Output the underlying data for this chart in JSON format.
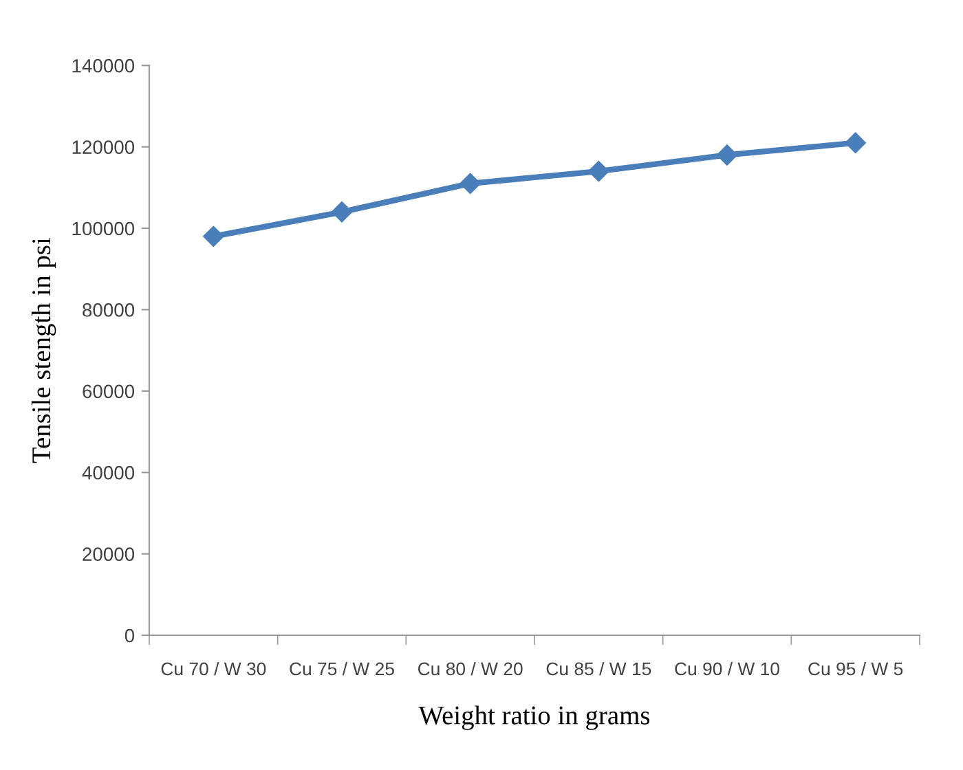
{
  "chart_data": {
    "type": "line",
    "xlabel": "Weight ratio in grams",
    "ylabel": "Tensile stength in psi",
    "categories": [
      "Cu 70 / W 30",
      "Cu 75 / W 25",
      "Cu 80 / W 20",
      "Cu 85 / W 15",
      "Cu 90 / W 10",
      "Cu 95 / W 5"
    ],
    "series": [
      {
        "color": "#4a7ebb",
        "values": [
          98000,
          104000,
          111000,
          114000,
          118000,
          121000
        ]
      }
    ],
    "ylim": [
      0,
      140000
    ],
    "yticks": [
      0,
      20000,
      40000,
      60000,
      80000,
      100000,
      120000,
      140000
    ],
    "grid": false,
    "legend": false,
    "marker": "diamond",
    "line_style": "solid"
  }
}
